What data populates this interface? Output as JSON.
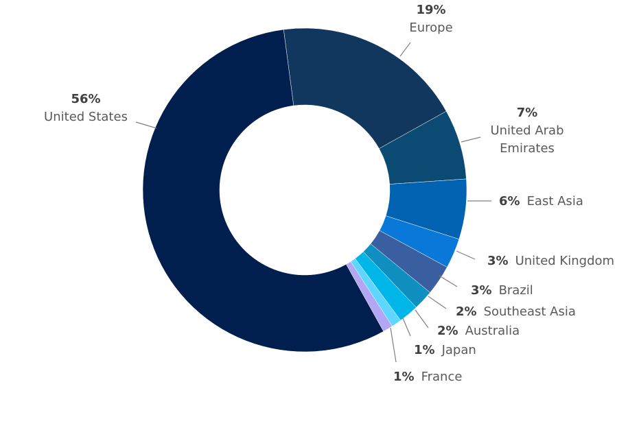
{
  "chart_data": {
    "type": "donut",
    "categories": [
      "Europe",
      "United Arab Emirates",
      "East Asia",
      "United Kingdom",
      "Brazil",
      "Southeast Asia",
      "Australia",
      "Japan",
      "France",
      "United States"
    ],
    "values": [
      19,
      7,
      6,
      3,
      3,
      2,
      2,
      1,
      1,
      56
    ],
    "value_labels": [
      "19%",
      "7%",
      "6%",
      "3%",
      "3%",
      "2%",
      "2%",
      "1%",
      "1%",
      "56%"
    ],
    "colors": [
      "#12375e",
      "#0b4a72",
      "#0062b0",
      "#0a78d8",
      "#3a5fa0",
      "#0f8fbf",
      "#00b6e8",
      "#5ed6ff",
      "#b3a7f5",
      "#001f4e"
    ]
  }
}
